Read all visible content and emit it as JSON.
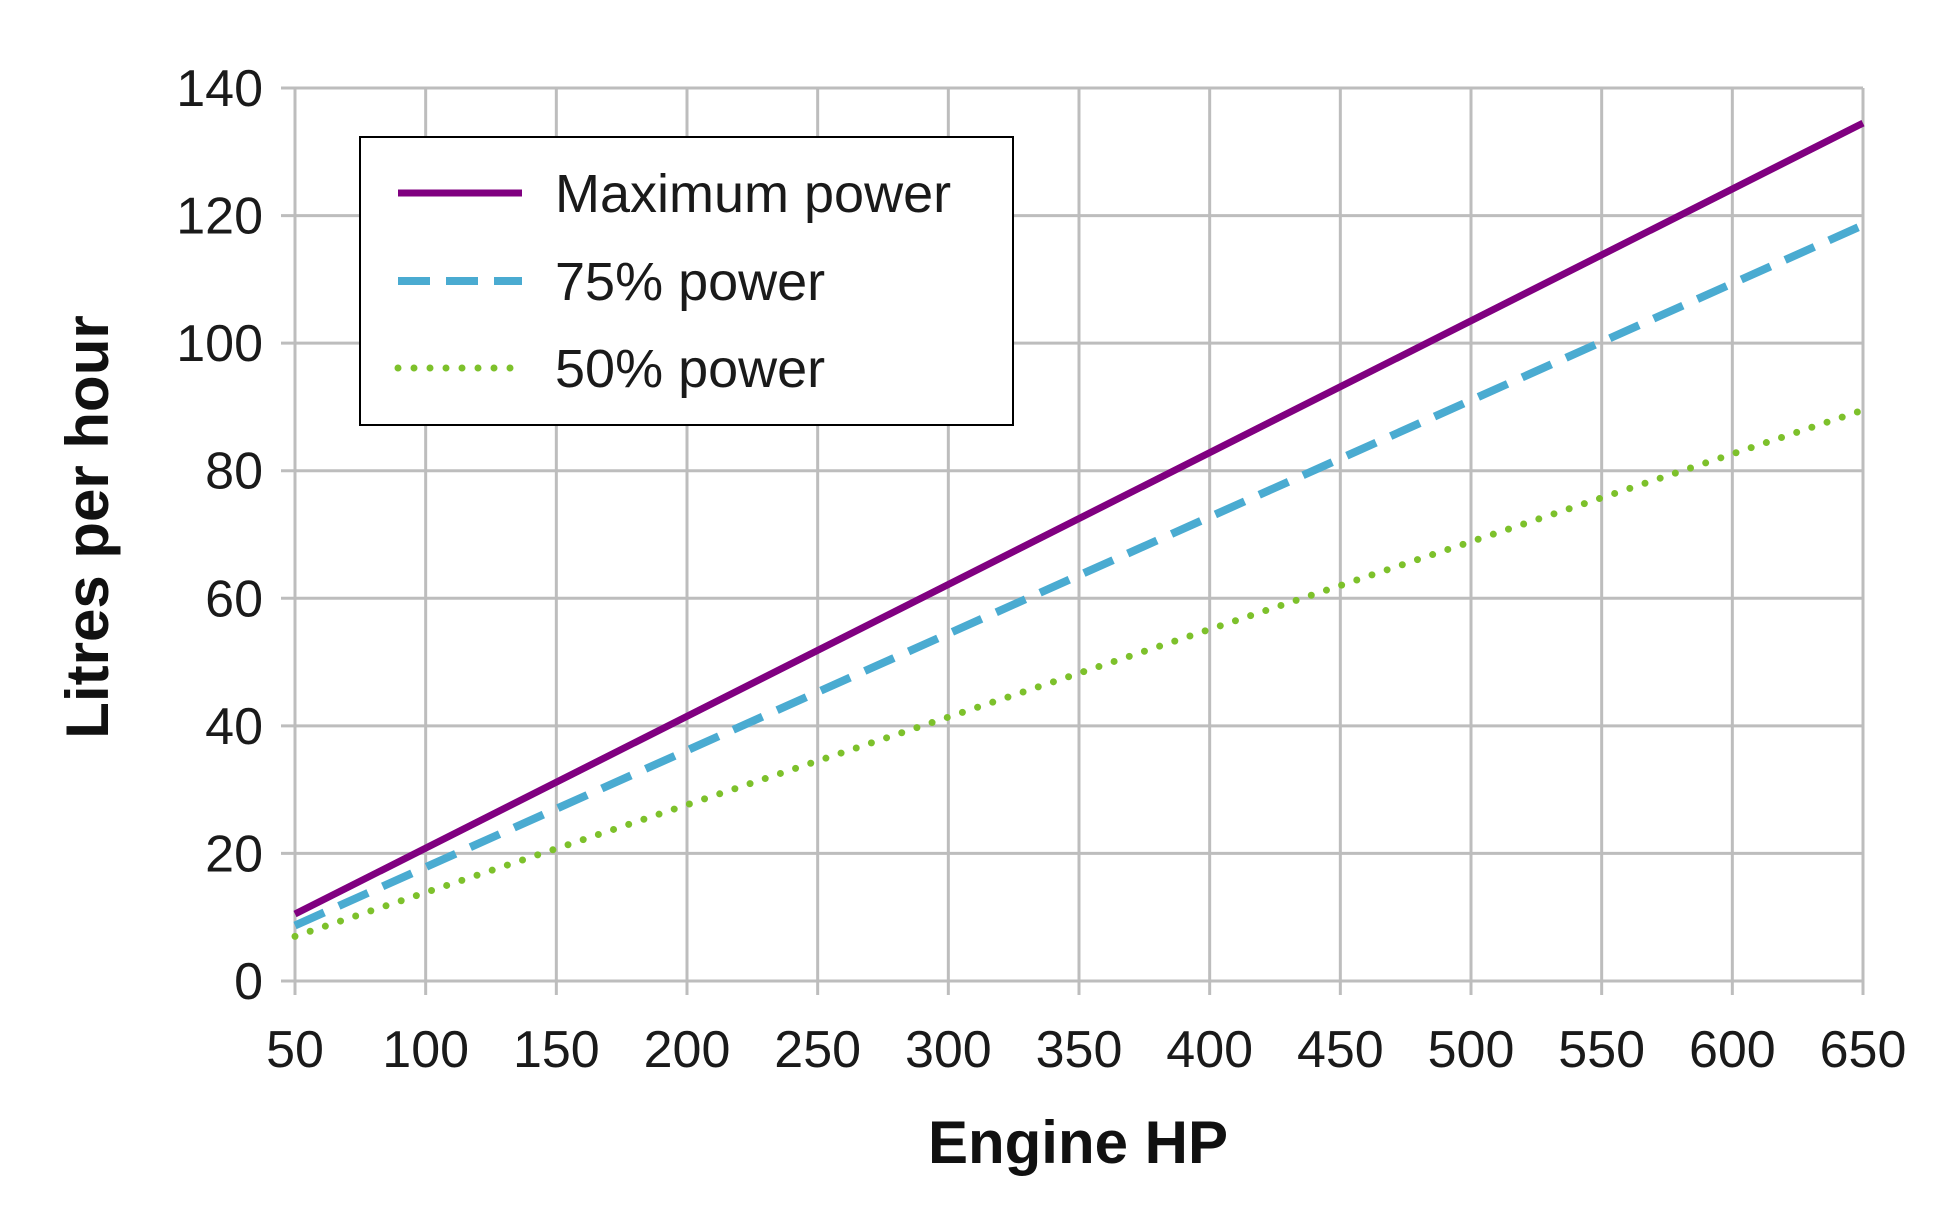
{
  "chart_data": {
    "type": "line",
    "title": "",
    "xlabel": "Engine HP",
    "ylabel": "Litres per hour",
    "xlim": [
      50,
      650
    ],
    "ylim": [
      0,
      140
    ],
    "x_ticks": [
      "50",
      "100",
      "150",
      "200",
      "250",
      "300",
      "350",
      "400",
      "450",
      "500",
      "550",
      "600",
      "650"
    ],
    "y_ticks": [
      "0",
      "20",
      "40",
      "60",
      "80",
      "100",
      "120",
      "140"
    ],
    "grid": true,
    "legend_position": "top-left",
    "x": [
      50,
      650
    ],
    "series": [
      {
        "name": "Maximum power",
        "values": [
          10.5,
          134.5
        ],
        "color": "#800080",
        "style": "solid"
      },
      {
        "name": "75% power",
        "values": [
          8.7,
          118.5
        ],
        "color": "#4aabd1",
        "style": "dashed"
      },
      {
        "name": "50% power",
        "values": [
          7.0,
          89.5
        ],
        "color": "#7dc12b",
        "style": "dotted"
      }
    ]
  }
}
